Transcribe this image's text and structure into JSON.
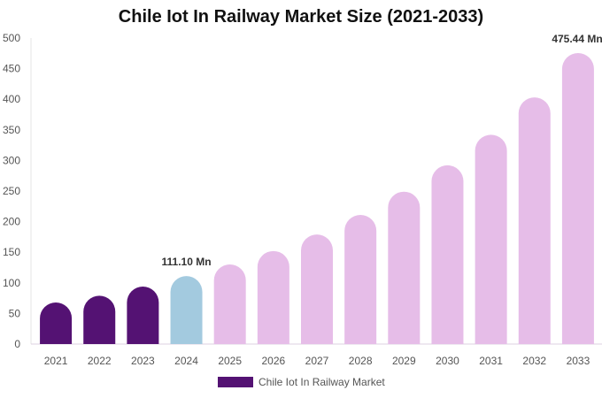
{
  "chart_data": {
    "type": "bar",
    "title": "Chile Iot In Railway Market Size (2021-2033)",
    "categories": [
      "2021",
      "2022",
      "2023",
      "2024",
      "2025",
      "2026",
      "2027",
      "2028",
      "2029",
      "2030",
      "2031",
      "2032",
      "2033"
    ],
    "series": [
      {
        "name": "Chile Iot In Railway Market",
        "values": [
          68,
          79,
          94,
          111.1,
          130,
          152,
          179,
          211,
          249,
          292,
          342,
          403,
          475.44
        ]
      }
    ],
    "data_labels": {
      "3": "111.10 Mn",
      "12": "475.44 Mn"
    },
    "ylim": [
      0,
      500
    ],
    "yticks": [
      0,
      50,
      100,
      150,
      200,
      250,
      300,
      350,
      400,
      450,
      500
    ],
    "grid": false,
    "legend_placement": "bottom",
    "colors": {
      "historical": "#541273",
      "base_year": "#a3cadf",
      "forecast": "#e6bde8"
    }
  }
}
